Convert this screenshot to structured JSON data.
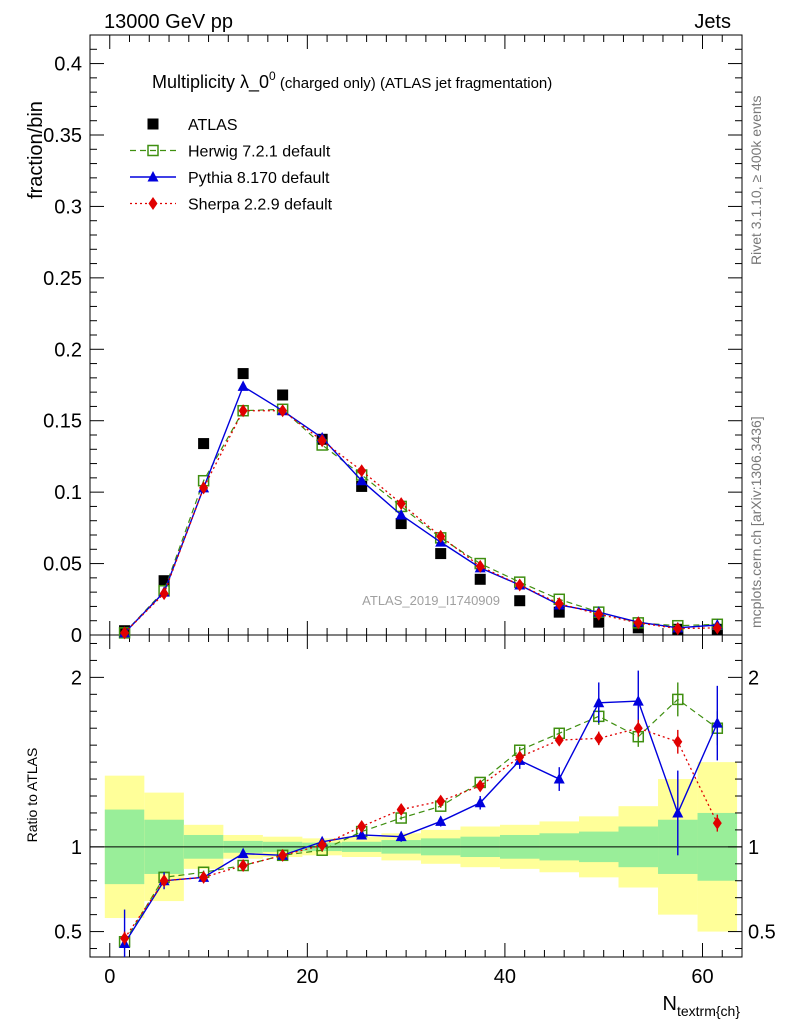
{
  "header": {
    "left": "13000 GeV pp",
    "right": "Jets"
  },
  "title": {
    "main": "Multiplicity λ_0",
    "sup": "0",
    "rest": " (charged only) (ATLAS jet fragmentation)"
  },
  "side_labels": {
    "rivet": "Rivet 3.1.10, ≥ 400k events",
    "mcplots": "mcplots.cern.ch [arXiv:1306.3436]"
  },
  "watermark": "ATLAS_2019_I1740909",
  "colors": {
    "atlas": "#000000",
    "herwig": "#3f8f10",
    "pythia": "#0000dd",
    "sherpa": "#e00000",
    "band_inner": "#99ee99",
    "band_outer": "#ffff99"
  },
  "chart_data": [
    {
      "type": "scatter",
      "panel": "main",
      "ylabel": "fraction/bin",
      "xlim": [
        -2,
        64
      ],
      "ylim": [
        0,
        0.42
      ],
      "yticks": [
        0,
        0.05,
        0.1,
        0.15,
        0.2,
        0.25,
        0.3,
        0.35,
        0.4
      ],
      "ytick_labels": [
        "0",
        "0.05",
        "0.1",
        "0.15",
        "0.2",
        "0.25",
        "0.3",
        "0.35",
        "0.4"
      ],
      "legend_position": "top-left",
      "bin_edges": [
        -0.5,
        3.5,
        7.5,
        11.5,
        15.5,
        19.5,
        23.5,
        27.5,
        31.5,
        35.5,
        39.5,
        43.5,
        47.5,
        51.5,
        55.5,
        59.5,
        63.5
      ],
      "x": [
        1.5,
        5.5,
        9.5,
        13.5,
        17.5,
        21.5,
        25.5,
        29.5,
        33.5,
        37.5,
        41.5,
        45.5,
        49.5,
        53.5,
        57.5,
        61.5
      ],
      "series": [
        {
          "name": "ATLAS",
          "marker": "square",
          "values": [
            0.003,
            0.038,
            0.134,
            0.183,
            0.168,
            0.137,
            0.104,
            0.078,
            0.057,
            0.039,
            0.024,
            0.016,
            0.009,
            0.005,
            0.004,
            0.004
          ]
        },
        {
          "name": "Herwig 7.2.1 default",
          "marker": "open-square",
          "line": "dashed",
          "values": [
            0.0015,
            0.031,
            0.108,
            0.157,
            0.158,
            0.133,
            0.112,
            0.09,
            0.068,
            0.05,
            0.037,
            0.025,
            0.016,
            0.0085,
            0.0065,
            0.0075
          ]
        },
        {
          "name": "Pythia 8.170 default",
          "marker": "triangle",
          "line": "solid",
          "values": [
            0.0015,
            0.03,
            0.103,
            0.174,
            0.157,
            0.138,
            0.108,
            0.084,
            0.065,
            0.047,
            0.035,
            0.021,
            0.016,
            0.009,
            0.005,
            0.007
          ]
        },
        {
          "name": "Sherpa 2.2.9 default",
          "marker": "diamond",
          "line": "dotted",
          "values": [
            0.0015,
            0.029,
            0.103,
            0.157,
            0.157,
            0.136,
            0.115,
            0.092,
            0.069,
            0.048,
            0.035,
            0.022,
            0.0145,
            0.0085,
            0.0045,
            0.005
          ]
        }
      ]
    },
    {
      "type": "line",
      "panel": "ratio",
      "ylabel": "Ratio to ATLAS",
      "xlabel_main": "N",
      "xlabel_sub": "textrm{ch}",
      "xlim": [
        -2,
        64
      ],
      "ylim": [
        0.35,
        2.25
      ],
      "yticks": [
        0.5,
        1,
        2
      ],
      "ytick_labels": [
        "0.5",
        "1",
        "2"
      ],
      "xticks": [
        0,
        20,
        40,
        60
      ],
      "xtick_labels": [
        "0",
        "20",
        "40",
        "60"
      ],
      "band_inner_half_width": [
        0.22,
        0.16,
        0.07,
        0.035,
        0.03,
        0.025,
        0.03,
        0.04,
        0.05,
        0.06,
        0.07,
        0.08,
        0.09,
        0.12,
        0.16,
        0.2
      ],
      "band_outer_half_width": [
        0.42,
        0.32,
        0.13,
        0.07,
        0.06,
        0.05,
        0.06,
        0.08,
        0.1,
        0.12,
        0.13,
        0.15,
        0.18,
        0.24,
        0.4,
        0.5
      ],
      "x": [
        1.5,
        5.5,
        9.5,
        13.5,
        17.5,
        21.5,
        25.5,
        29.5,
        33.5,
        37.5,
        41.5,
        45.5,
        49.5,
        53.5,
        57.5,
        61.5
      ],
      "series": [
        {
          "name": "Herwig 7.2.1 default",
          "marker": "open-square",
          "line": "dashed",
          "values": [
            0.44,
            0.82,
            0.85,
            0.89,
            0.95,
            0.98,
            1.09,
            1.17,
            1.24,
            1.38,
            1.57,
            1.67,
            1.77,
            1.65,
            1.87,
            1.7
          ],
          "errors": [
            0.03,
            0.02,
            0.01,
            0.01,
            0.01,
            0.01,
            0.01,
            0.01,
            0.01,
            0.01,
            0.02,
            0.03,
            0.05,
            0.06,
            0.1,
            0.1
          ]
        },
        {
          "name": "Pythia 8.170 default",
          "marker": "triangle",
          "line": "solid",
          "values": [
            0.43,
            0.8,
            0.82,
            0.96,
            0.95,
            1.03,
            1.07,
            1.06,
            1.15,
            1.26,
            1.51,
            1.4,
            1.85,
            1.86,
            1.2,
            1.73
          ],
          "errors": [
            0.2,
            0.05,
            0.02,
            0.01,
            0.01,
            0.02,
            0.02,
            0.03,
            0.03,
            0.04,
            0.05,
            0.07,
            0.12,
            0.18,
            0.25,
            0.22
          ]
        },
        {
          "name": "Sherpa 2.2.9 default",
          "marker": "diamond",
          "line": "dotted",
          "values": [
            0.46,
            0.8,
            0.82,
            0.89,
            0.95,
            1.01,
            1.12,
            1.22,
            1.27,
            1.36,
            1.53,
            1.63,
            1.64,
            1.7,
            1.62,
            1.14
          ],
          "errors": [
            0.04,
            0.02,
            0.01,
            0.01,
            0.01,
            0.01,
            0.01,
            0.01,
            0.01,
            0.02,
            0.02,
            0.03,
            0.04,
            0.05,
            0.07,
            0.05
          ]
        }
      ]
    }
  ]
}
